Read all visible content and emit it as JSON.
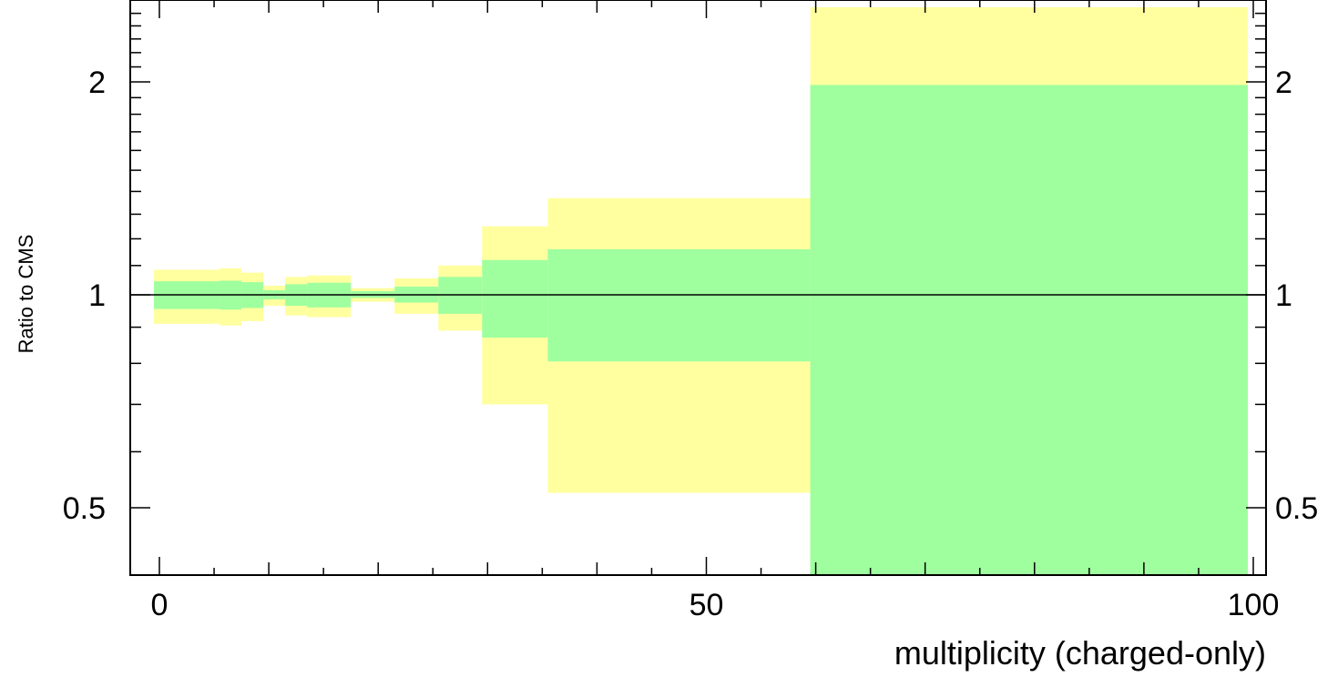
{
  "chart_data": {
    "type": "area",
    "xlabel": "multiplicity (charged-only)",
    "ylabel": "Ratio to CMS",
    "xlim": [
      -2,
      101
    ],
    "ylim": [
      0.38,
      2.55
    ],
    "y_scale": "log",
    "grid": false,
    "x_tick_labels": [
      "0",
      "50",
      "100"
    ],
    "y_tick_labels": [
      "0.5",
      "1",
      "2"
    ],
    "x_ticks": [
      0,
      50,
      100
    ],
    "y_ticks": [
      0.5,
      1,
      2
    ],
    "reference_line": 1,
    "colors": {
      "inner_band": "#9fff9f",
      "outer_band": "#ffff9f",
      "axis": "#000000"
    },
    "bins": [
      {
        "x": [
          -0.5,
          5.5
        ],
        "inner": [
          0.955,
          1.045
        ],
        "outer": [
          0.91,
          1.085
        ]
      },
      {
        "x": [
          5.5,
          7.5
        ],
        "inner": [
          0.953,
          1.047
        ],
        "outer": [
          0.905,
          1.09
        ]
      },
      {
        "x": [
          7.5,
          9.5
        ],
        "inner": [
          0.958,
          1.042
        ],
        "outer": [
          0.918,
          1.075
        ]
      },
      {
        "x": [
          9.5,
          11.5
        ],
        "inner": [
          0.985,
          1.015
        ],
        "outer": [
          0.965,
          1.03
        ]
      },
      {
        "x": [
          11.5,
          13.5
        ],
        "inner": [
          0.965,
          1.035
        ],
        "outer": [
          0.935,
          1.06
        ]
      },
      {
        "x": [
          13.5,
          17.5
        ],
        "inner": [
          0.96,
          1.04
        ],
        "outer": [
          0.93,
          1.065
        ]
      },
      {
        "x": [
          17.5,
          21.5
        ],
        "inner": [
          0.99,
          1.012
        ],
        "outer": [
          0.978,
          1.022
        ]
      },
      {
        "x": [
          21.5,
          25.5
        ],
        "inner": [
          0.975,
          1.027
        ],
        "outer": [
          0.94,
          1.055
        ]
      },
      {
        "x": [
          25.5,
          29.5
        ],
        "inner": [
          0.94,
          1.06
        ],
        "outer": [
          0.89,
          1.1
        ]
      },
      {
        "x": [
          29.5,
          35.5
        ],
        "inner": [
          0.87,
          1.12
        ],
        "outer": [
          0.7,
          1.25
        ]
      },
      {
        "x": [
          35.5,
          59.5
        ],
        "inner": [
          0.805,
          1.16
        ],
        "outer": [
          0.525,
          1.37
        ]
      },
      {
        "x": [
          59.5,
          99.5
        ],
        "inner": [
          0.38,
          1.98
        ],
        "outer": [
          0.38,
          2.55
        ]
      }
    ]
  }
}
